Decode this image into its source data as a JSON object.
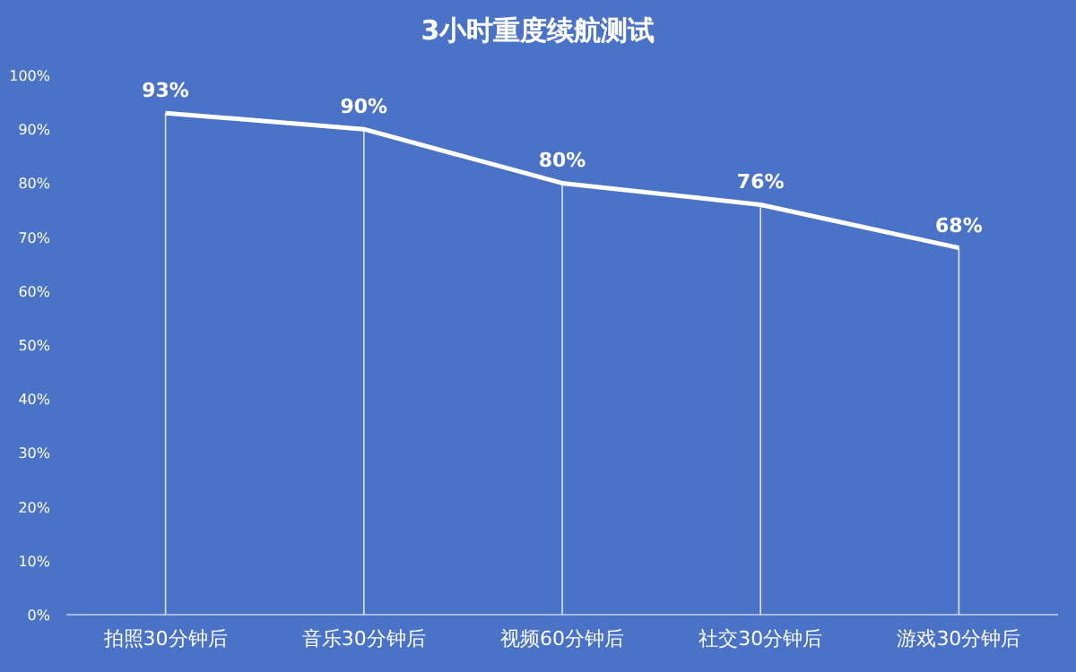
{
  "chart_data": {
    "type": "line",
    "title": "3小时重度续航测试",
    "categories": [
      "拍照30分钟后",
      "音乐30分钟后",
      "视频60分钟后",
      "社交30分钟后",
      "游戏30分钟后"
    ],
    "values": [
      93,
      90,
      80,
      76,
      68
    ],
    "color": "#ffffff",
    "ylim": [
      0,
      100
    ],
    "yticks": [
      {
        "value": 0,
        "label": "0%"
      },
      {
        "value": 10,
        "label": "10%"
      },
      {
        "value": 20,
        "label": "20%"
      },
      {
        "value": 30,
        "label": "30%"
      },
      {
        "value": 40,
        "label": "40%"
      },
      {
        "value": 50,
        "label": "50%"
      },
      {
        "value": 60,
        "label": "60%"
      },
      {
        "value": 70,
        "label": "70%"
      },
      {
        "value": 80,
        "label": "80%"
      },
      {
        "value": 90,
        "label": "90%"
      },
      {
        "value": 100,
        "label": "100%"
      }
    ],
    "value_labels": [
      "93%",
      "90%",
      "80%",
      "76%",
      "68%"
    ],
    "grid": "x"
  }
}
